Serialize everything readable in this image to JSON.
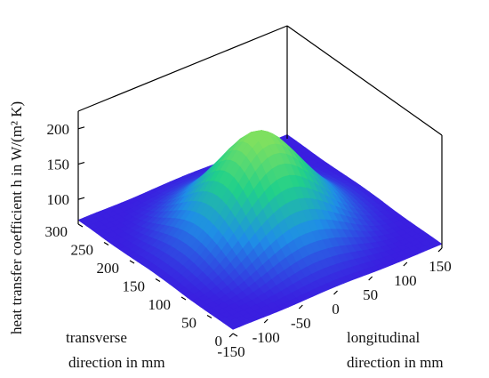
{
  "chart_data": {
    "type": "surface",
    "zlabel": "heat transfer coefficient h in W/(m² K)",
    "xlabel_lines": [
      "transverse",
      "direction in mm"
    ],
    "ylabel_lines": [
      "longitudinal",
      "direction in mm"
    ],
    "x_ticks": [
      "0",
      "50",
      "100",
      "150",
      "200",
      "250",
      "300"
    ],
    "y_ticks": [
      "-150",
      "-100",
      "-50",
      "0",
      "50",
      "100",
      "150"
    ],
    "z_ticks": [
      "100",
      "150",
      "200"
    ],
    "x_range": [
      0,
      300
    ],
    "y_range": [
      -150,
      150
    ],
    "z_range": [
      65,
      225
    ],
    "x_values": [
      0,
      50,
      100,
      150,
      200,
      250,
      300
    ],
    "y_values": [
      -150,
      -100,
      -50,
      0,
      50,
      100,
      150
    ],
    "z_values_note": "",
    "colormap": [
      "#3a1ee0",
      "#1f8ee6",
      "#20d08a",
      "#7ee060"
    ],
    "center": {
      "x": 150,
      "y": 0,
      "h_peak": 205
    },
    "edge_h": 70,
    "grid": false
  }
}
